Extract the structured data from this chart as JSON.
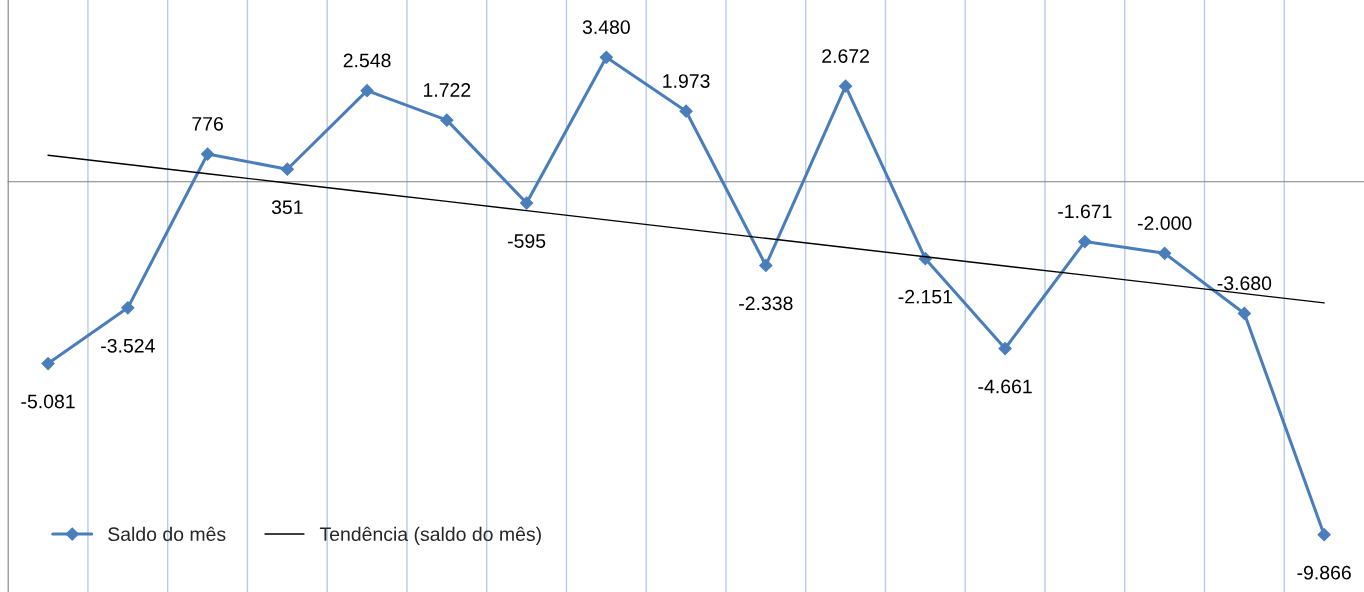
{
  "chart_data": {
    "type": "line",
    "categories": [
      null,
      null,
      null,
      null,
      null,
      null,
      null,
      null,
      null,
      null,
      null,
      null,
      null,
      null,
      null,
      null,
      null
    ],
    "series": [
      {
        "name": "Saldo do mês",
        "color": "#4a7ebb",
        "marker": "diamond",
        "values": [
          -5081,
          -3524,
          776,
          351,
          2548,
          1722,
          -595,
          3480,
          1973,
          -2338,
          2672,
          -2151,
          -4661,
          -1671,
          -2000,
          -3680,
          -9866
        ],
        "value_labels": [
          "-5.081",
          "-3.524",
          "776",
          "351",
          "2.548",
          "1.722",
          "-595",
          "3.480",
          "1.973",
          "-2.338",
          "2.672",
          "-2.151",
          "-4.661",
          "-1.671",
          "-2.000",
          "-3.680",
          "-9.866"
        ]
      },
      {
        "name": "Tendência (saldo do mês)",
        "type": "line",
        "color": "#000000",
        "marker": "none",
        "values": [
          740,
          482,
          224,
          -33,
          -291,
          -549,
          -807,
          -1064,
          -1322,
          -1580,
          -1838,
          -2096,
          -2353,
          -2611,
          -2869,
          -3127,
          -3385
        ]
      }
    ],
    "grid": "x",
    "legend": "bottom left",
    "line_style": "solid"
  }
}
